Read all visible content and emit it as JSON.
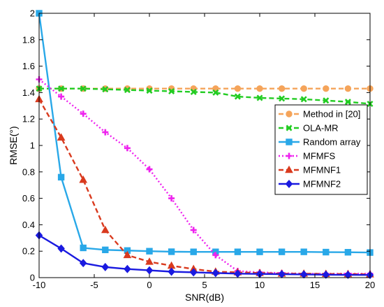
{
  "chart_data": {
    "type": "line",
    "title": "",
    "xlabel": "SNR(dB)",
    "ylabel": "RMSE(°)",
    "xlim": [
      -10,
      20
    ],
    "ylim": [
      0,
      2
    ],
    "xticks": [
      -10,
      -5,
      0,
      5,
      10,
      15,
      20
    ],
    "yticks": [
      0,
      0.2,
      0.4,
      0.6,
      0.8,
      1,
      1.2,
      1.4,
      1.6,
      1.8,
      2
    ],
    "xtick_labels": [
      "-10",
      "-5",
      "0",
      "5",
      "10",
      "15",
      "20"
    ],
    "ytick_labels": [
      "0",
      "0.2",
      "0.4",
      "0.6",
      "0.8",
      "1",
      "1.2",
      "1.4",
      "1.6",
      "1.8",
      "2"
    ],
    "grid": false,
    "legend_position": "right",
    "x": [
      -10,
      -8,
      -6,
      -4,
      -2,
      0,
      2,
      4,
      6,
      8,
      10,
      12,
      14,
      16,
      18,
      20
    ],
    "series": [
      {
        "name": "Method in [20]",
        "color": "#f5a45a",
        "marker": "circle",
        "line_style": "dashed",
        "values": [
          1.43,
          1.43,
          1.43,
          1.43,
          1.43,
          1.43,
          1.43,
          1.43,
          1.43,
          1.43,
          1.43,
          1.43,
          1.43,
          1.43,
          1.43,
          1.43
        ]
      },
      {
        "name": "OLA-MR",
        "color": "#22cc22",
        "marker": "x",
        "line_style": "dashed",
        "values": [
          1.43,
          1.43,
          1.43,
          1.425,
          1.42,
          1.415,
          1.41,
          1.405,
          1.4,
          1.37,
          1.36,
          1.355,
          1.35,
          1.34,
          1.33,
          1.315
        ]
      },
      {
        "name": "Random array",
        "color": "#29a8e8",
        "marker": "square",
        "line_style": "solid",
        "values": [
          2.0,
          0.76,
          0.225,
          0.21,
          0.205,
          0.2,
          0.196,
          0.195,
          0.195,
          0.195,
          0.195,
          0.195,
          0.195,
          0.193,
          0.192,
          0.19
        ]
      },
      {
        "name": "MFMFS",
        "color": "#ee22ee",
        "marker": "plus",
        "line_style": "dotted",
        "values": [
          1.5,
          1.37,
          1.24,
          1.1,
          0.98,
          0.82,
          0.6,
          0.36,
          0.17,
          0.05,
          0.04,
          0.035,
          0.03,
          0.03,
          0.03,
          0.03
        ]
      },
      {
        "name": "MFMNF1",
        "color": "#d93a1e",
        "marker": "triangle",
        "line_style": "dashed",
        "values": [
          1.35,
          1.06,
          0.74,
          0.36,
          0.17,
          0.12,
          0.09,
          0.065,
          0.045,
          0.04,
          0.035,
          0.03,
          0.03,
          0.028,
          0.027,
          0.025
        ]
      },
      {
        "name": "MFMNF2",
        "color": "#1a1ae0",
        "marker": "diamond",
        "line_style": "solid",
        "values": [
          0.32,
          0.22,
          0.11,
          0.08,
          0.065,
          0.055,
          0.045,
          0.04,
          0.035,
          0.03,
          0.028,
          0.026,
          0.024,
          0.022,
          0.021,
          0.02
        ]
      }
    ]
  }
}
